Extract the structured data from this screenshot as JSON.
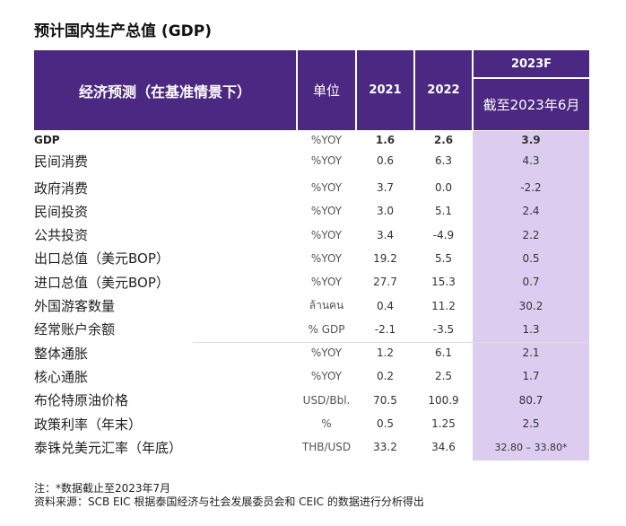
{
  "title": "预计国内生产总值 (GDP)",
  "header": {
    "indicator": "经济预测（在基准情景下）",
    "unit": "单位",
    "y2021": "2021",
    "y2022": "2022",
    "y2023": "2023F",
    "y2023_sub": "截至2023年6月"
  },
  "colors": {
    "header": "#4b2882",
    "forecast_bg": "#dccdf0"
  },
  "rows": [
    {
      "label": "GDP",
      "unit": "%YOY",
      "y2021": "1.6",
      "y2022": "2.6",
      "y2023": "3.9"
    },
    {
      "label": "民间消费",
      "unit": "%YOY",
      "y2021": "0.6",
      "y2022": "6.3",
      "y2023": "4.3"
    },
    {
      "label": "政府消费",
      "unit": "%YOY",
      "y2021": "3.7",
      "y2022": "0.0",
      "y2023": "-2.2"
    },
    {
      "label": "民间投资",
      "unit": "%YOY",
      "y2021": "3.0",
      "y2022": "5.1",
      "y2023": "2.4"
    },
    {
      "label": "公共投资",
      "unit": "%YOY",
      "y2021": "3.4",
      "y2022": "-4.9",
      "y2023": "2.2"
    },
    {
      "label": "出口总值（美元BOP）",
      "unit": "%YOY",
      "y2021": "19.2",
      "y2022": "5.5",
      "y2023": "0.5"
    },
    {
      "label": "进口总值（美元BOP）",
      "unit": "%YOY",
      "y2021": "27.7",
      "y2022": "15.3",
      "y2023": "0.7"
    },
    {
      "label": "外国游客数量",
      "unit": "ล้านคน",
      "y2021": "0.4",
      "y2022": "11.2",
      "y2023": "30.2"
    },
    {
      "label": "经常账户余额",
      "unit": "% GDP",
      "y2021": "-2.1",
      "y2022": "-3.5",
      "y2023": "1.3"
    },
    {
      "label": "整体通胀",
      "unit": "%YOY",
      "y2021": "1.2",
      "y2022": "6.1",
      "y2023": "2.1"
    },
    {
      "label": "核心通胀",
      "unit": "%YOY",
      "y2021": "0.2",
      "y2022": "2.5",
      "y2023": "1.7"
    },
    {
      "label": "布伦特原油价格",
      "unit": "USD/Bbl.",
      "y2021": "70.5",
      "y2022": "100.9",
      "y2023": "80.7"
    },
    {
      "label": "政策利率（年末）",
      "unit": "%",
      "y2021": "0.5",
      "y2022": "1.25",
      "y2023": "2.5"
    },
    {
      "label": "泰铢兑美元汇率（年底）",
      "unit": "THB/USD",
      "y2021": "33.2",
      "y2022": "34.6",
      "y2023": "32.80 – 33.80*"
    }
  ],
  "notes": {
    "note": "注：*数据截止至2023年7月",
    "source": "资料来源：SCB EIC 根据泰国经济与社会发展委员会和 CEIC 的数据进行分析得出"
  }
}
